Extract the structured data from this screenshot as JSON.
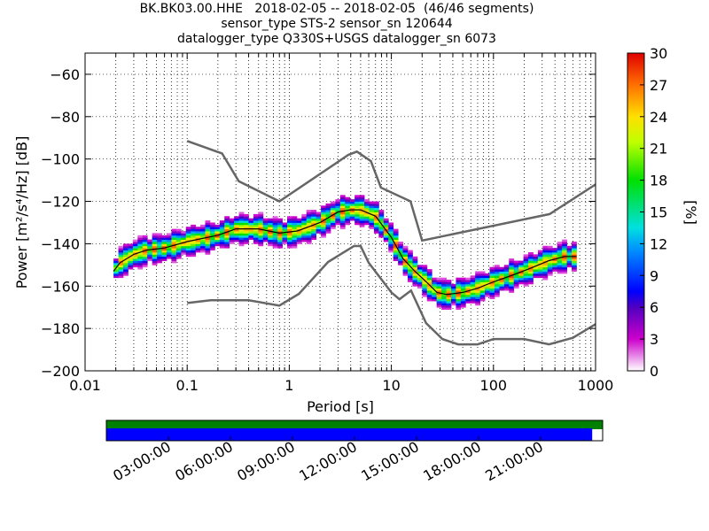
{
  "figure": {
    "title_lines": [
      "BK.BK03.00.HHE   2018-02-05 -- 2018-02-05  (46/46 segments)",
      "sensor_type STS-2 sensor_sn 120644",
      "datalogger_type Q330S+USGS datalogger_sn 6073"
    ]
  },
  "chart_data": [
    {
      "type": "heatmap",
      "xlabel": "Period [s]",
      "ylabel": "Power [m²/s⁴/Hz] [dB]",
      "x_scale": "log",
      "xlim": [
        0.01,
        1000
      ],
      "ylim": [
        -200,
        -50
      ],
      "x_tick_labels": [
        "0.01",
        "0.1",
        "1",
        "10",
        "100",
        "1000"
      ],
      "y_tick_labels": [
        "−60",
        "−80",
        "−100",
        "−120",
        "−140",
        "−160",
        "−180",
        "−200"
      ],
      "grid": "dotted vertical lines at log sub-ticks",
      "colorbar": {
        "label": "[%]",
        "range": [
          0,
          30
        ],
        "tick_labels": [
          "0",
          "3",
          "6",
          "9",
          "12",
          "15",
          "18",
          "21",
          "24",
          "27",
          "30"
        ]
      },
      "mode_curve": [
        [
          0.019,
          -153
        ],
        [
          0.022,
          -149
        ],
        [
          0.03,
          -145
        ],
        [
          0.04,
          -143
        ],
        [
          0.06,
          -142
        ],
        [
          0.1,
          -139
        ],
        [
          0.2,
          -136
        ],
        [
          0.3,
          -133
        ],
        [
          0.5,
          -133
        ],
        [
          0.8,
          -135
        ],
        [
          1.2,
          -134
        ],
        [
          2,
          -130
        ],
        [
          3,
          -125
        ],
        [
          4,
          -124
        ],
        [
          5,
          -124
        ],
        [
          7,
          -127
        ],
        [
          10,
          -137
        ],
        [
          13,
          -147
        ],
        [
          17,
          -153
        ],
        [
          22,
          -158
        ],
        [
          28,
          -163
        ],
        [
          35,
          -164
        ],
        [
          50,
          -163
        ],
        [
          70,
          -161
        ],
        [
          100,
          -158
        ],
        [
          150,
          -155
        ],
        [
          220,
          -152
        ],
        [
          350,
          -148
        ],
        [
          500,
          -146
        ],
        [
          650,
          -146
        ]
      ],
      "noise_model_high": [
        [
          0.1,
          -91.5
        ],
        [
          0.22,
          -97.4
        ],
        [
          0.32,
          -110.5
        ],
        [
          0.8,
          -120
        ],
        [
          3.8,
          -98
        ],
        [
          4.6,
          -96.5
        ],
        [
          6.3,
          -101
        ],
        [
          7.9,
          -113.5
        ],
        [
          15.4,
          -120
        ],
        [
          20,
          -138.5
        ],
        [
          354.8,
          -126
        ],
        [
          1000,
          -112
        ]
      ],
      "noise_model_low": [
        [
          0.1,
          -168
        ],
        [
          0.17,
          -166.7
        ],
        [
          0.4,
          -166.7
        ],
        [
          0.8,
          -169.2
        ],
        [
          1.24,
          -163.7
        ],
        [
          2.4,
          -148.6
        ],
        [
          4.3,
          -141.1
        ],
        [
          5,
          -141.1
        ],
        [
          6,
          -149
        ],
        [
          10,
          -163
        ],
        [
          12,
          -166.2
        ],
        [
          15.6,
          -162.1
        ],
        [
          21.9,
          -177.5
        ],
        [
          31.6,
          -185
        ],
        [
          45,
          -187.5
        ],
        [
          70,
          -187.5
        ],
        [
          100,
          -185
        ],
        [
          200,
          -185
        ],
        [
          350,
          -187.5
        ],
        [
          600,
          -184.4
        ],
        [
          1000,
          -178
        ]
      ]
    },
    {
      "type": "bar",
      "description": "data coverage timeline",
      "tick_labels": [
        "03:00:00",
        "06:00:00",
        "09:00:00",
        "12:00:00",
        "15:00:00",
        "18:00:00",
        "21:00:00"
      ],
      "available_fraction": 0.979,
      "colors": {
        "available": "#0000ff",
        "total": "#008000"
      }
    }
  ]
}
